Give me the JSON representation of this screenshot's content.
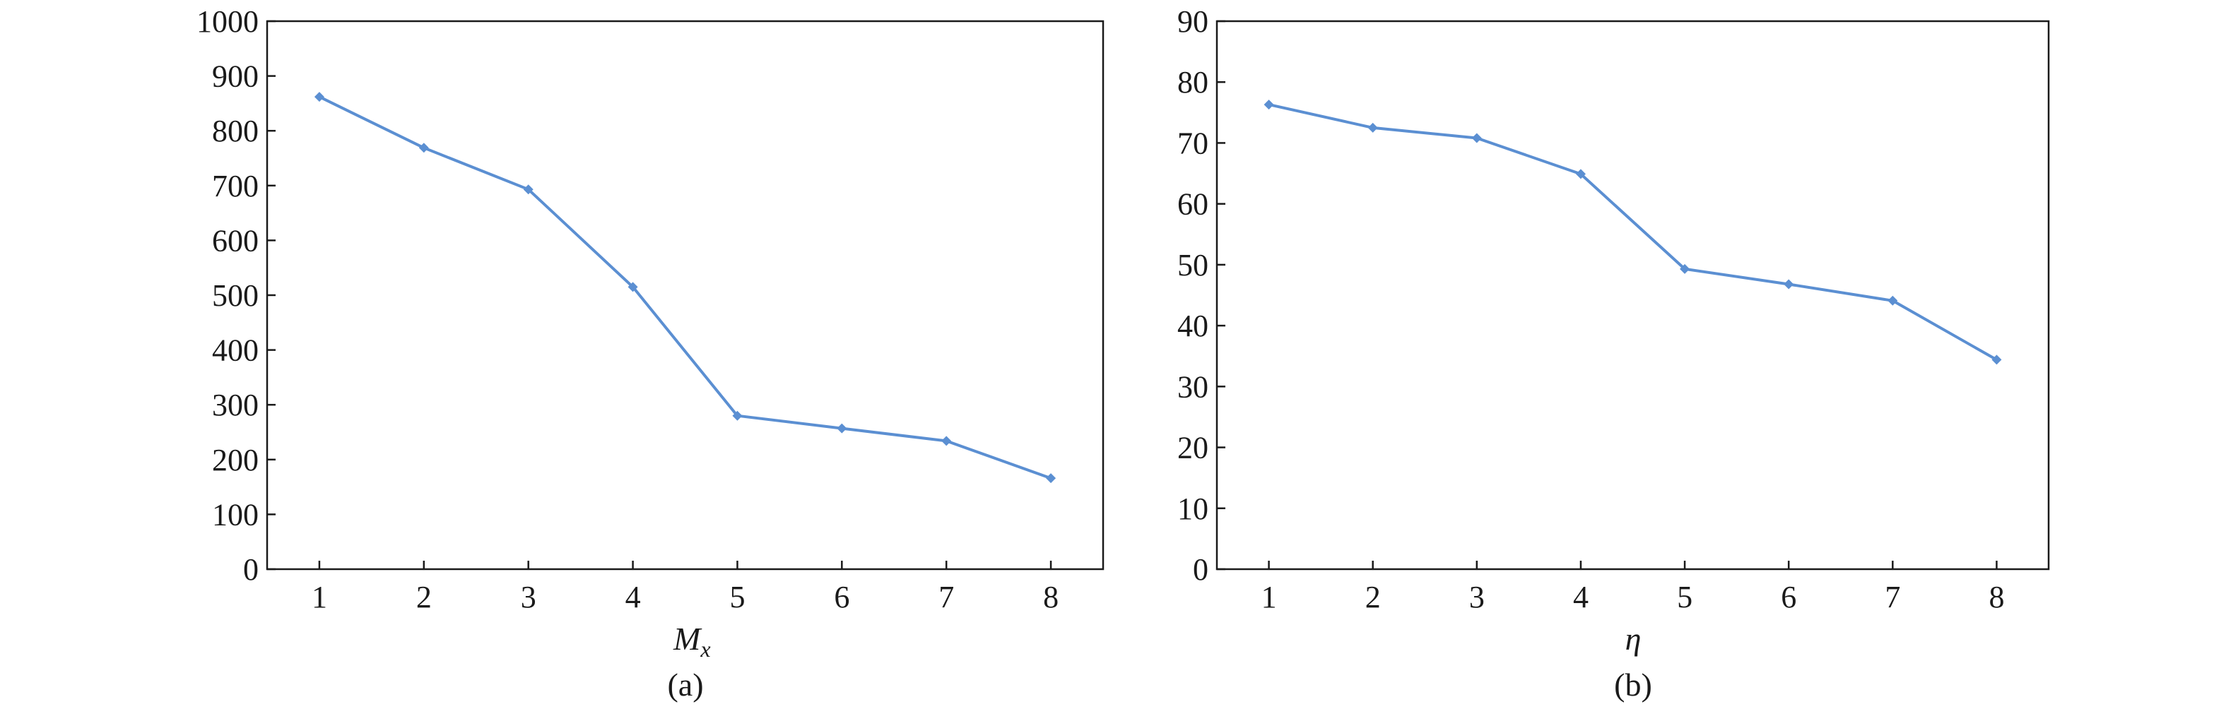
{
  "chart_data": [
    {
      "type": "line",
      "panel_label": "(a)",
      "xlabel_main": "M",
      "xlabel_sub": "x",
      "ylabel": "",
      "x": [
        1,
        2,
        3,
        4,
        5,
        6,
        7,
        8
      ],
      "xlim": [
        0.5,
        8.5
      ],
      "ylim": [
        0,
        1000
      ],
      "xticks": [
        1,
        2,
        3,
        4,
        5,
        6,
        7,
        8
      ],
      "yticks": [
        0,
        100,
        200,
        300,
        400,
        500,
        600,
        700,
        800,
        900,
        1000
      ],
      "series": [
        {
          "values": [
            862,
            769,
            693,
            515,
            280,
            257,
            234,
            166
          ],
          "color": "#5b8fd2"
        }
      ],
      "grid": false
    },
    {
      "type": "line",
      "panel_label": "(b)",
      "xlabel_main": "η",
      "xlabel_sub": "",
      "ylabel": "",
      "x": [
        1,
        2,
        3,
        4,
        5,
        6,
        7,
        8
      ],
      "xlim": [
        0.5,
        8.5
      ],
      "ylim": [
        0,
        90
      ],
      "xticks": [
        1,
        2,
        3,
        4,
        5,
        6,
        7,
        8
      ],
      "yticks": [
        0,
        10,
        20,
        30,
        40,
        50,
        60,
        70,
        80,
        90
      ],
      "series": [
        {
          "values": [
            76.3,
            72.5,
            70.8,
            64.9,
            49.3,
            46.8,
            44.1,
            34.4
          ],
          "color": "#5b8fd2"
        }
      ],
      "grid": false
    }
  ]
}
